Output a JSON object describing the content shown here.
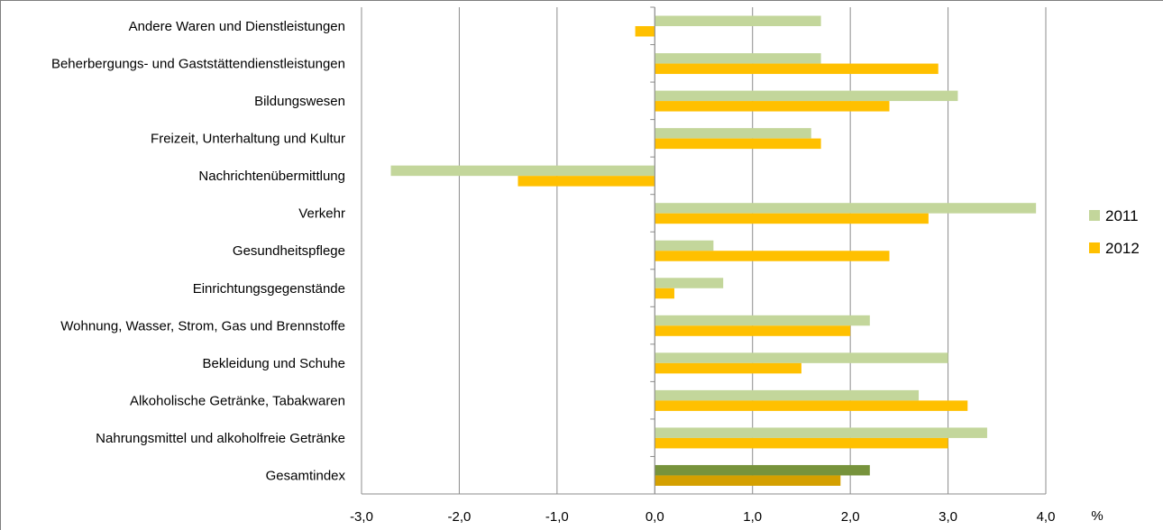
{
  "chart_data": {
    "type": "bar",
    "orientation": "horizontal",
    "categories": [
      "Andere Waren und Dienstleistungen",
      "Beherbergungs- und Gaststättendienstleistungen",
      "Bildungswesen",
      "Freizeit, Unterhaltung und Kultur",
      "Nachrichtenübermittlung",
      "Verkehr",
      "Gesundheitspflege",
      "Einrichtungsgegenstände",
      "Wohnung, Wasser, Strom, Gas und Brennstoffe",
      "Bekleidung und Schuhe",
      "Alkoholische Getränke, Tabakwaren",
      "Nahrungsmittel und alkoholfreie  Getränke",
      "Gesamtindex"
    ],
    "series": [
      {
        "name": "2011",
        "color": "#c3d69b",
        "values": [
          1.7,
          1.7,
          3.1,
          1.6,
          -2.7,
          3.9,
          0.6,
          0.7,
          2.2,
          3.0,
          2.7,
          3.4,
          2.2
        ]
      },
      {
        "name": "2012",
        "color": "#ffc000",
        "values": [
          -0.2,
          2.9,
          2.4,
          1.7,
          -1.4,
          2.8,
          2.4,
          0.2,
          2.0,
          1.5,
          3.2,
          3.0,
          1.9
        ]
      }
    ],
    "highlight": {
      "category": "Gesamtindex",
      "colors": [
        "#77933c",
        "#d4a000"
      ]
    },
    "xlim": [
      -3.0,
      4.0
    ],
    "xticks": [
      "-3,0",
      "-2,0",
      "-1,0",
      "0,0",
      "1,0",
      "2,0",
      "3,0",
      "4,0"
    ],
    "xunit": "%",
    "grid": true,
    "legend": "right"
  }
}
